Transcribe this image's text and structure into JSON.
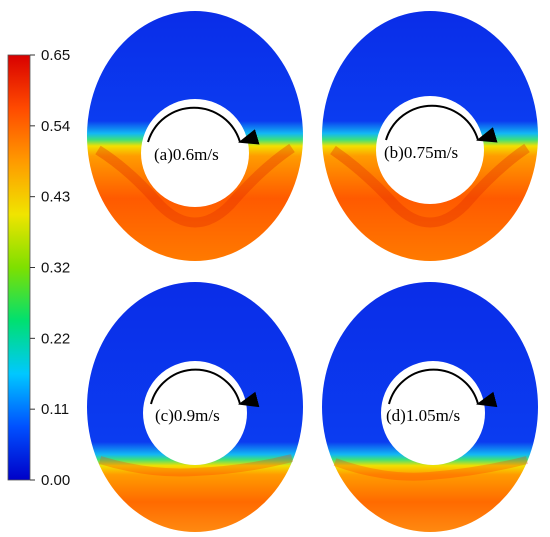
{
  "colorbar": {
    "ticks": [
      "0.65",
      "0.54",
      "0.43",
      "0.32",
      "0.22",
      "0.11",
      "0.00"
    ],
    "stops": [
      "#0000c8",
      "#0050ff",
      "#00c8ff",
      "#00e070",
      "#7ee000",
      "#f0e400",
      "#ff9a00",
      "#ff4a00",
      "#d80000"
    ]
  },
  "panels": [
    {
      "label": "(a)0.6m/s",
      "fill_level": 0.56
    },
    {
      "label": "(b)0.75m/s",
      "fill_level": 0.56
    },
    {
      "label": "(c)0.9m/s",
      "fill_level": 0.33
    },
    {
      "label": "(d)1.05m/s",
      "fill_level": 0.31
    }
  ]
}
